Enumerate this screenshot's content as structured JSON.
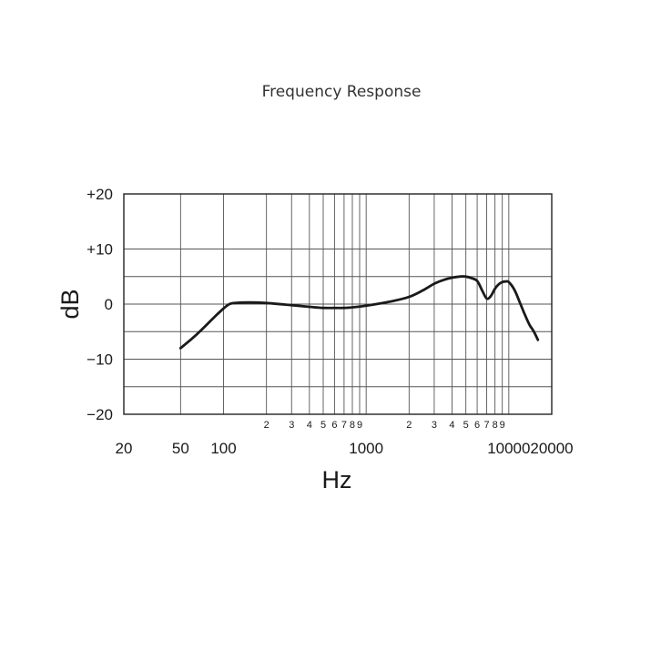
{
  "chart_data": {
    "type": "line",
    "title": "Frequency Response",
    "xlabel": "Hz",
    "ylabel": "dB",
    "x_scale": "log",
    "xlim": [
      20,
      20000
    ],
    "ylim": [
      -20,
      20
    ],
    "grid": true,
    "y_ticks": [
      {
        "value": 20,
        "label": "+20"
      },
      {
        "value": 10,
        "label": "+10"
      },
      {
        "value": 0,
        "label": "0"
      },
      {
        "value": -10,
        "label": "−10"
      },
      {
        "value": -20,
        "label": "−20"
      }
    ],
    "y_minor_grid": [
      5,
      -5,
      -15
    ],
    "x_major_ticks": [
      {
        "value": 20,
        "label": "20"
      },
      {
        "value": 50,
        "label": "50"
      },
      {
        "value": 100,
        "label": "100"
      },
      {
        "value": 1000,
        "label": "1000"
      },
      {
        "value": 10000,
        "label": "10000"
      },
      {
        "value": 20000,
        "label": "20000"
      }
    ],
    "x_minor_ticks": [
      {
        "value": 200,
        "label": "2"
      },
      {
        "value": 300,
        "label": "3"
      },
      {
        "value": 400,
        "label": "4"
      },
      {
        "value": 500,
        "label": "5"
      },
      {
        "value": 600,
        "label": "6"
      },
      {
        "value": 700,
        "label": "7"
      },
      {
        "value": 800,
        "label": "8"
      },
      {
        "value": 900,
        "label": "9"
      },
      {
        "value": 2000,
        "label": "2"
      },
      {
        "value": 3000,
        "label": "3"
      },
      {
        "value": 4000,
        "label": "4"
      },
      {
        "value": 5000,
        "label": "5"
      },
      {
        "value": 6000,
        "label": "6"
      },
      {
        "value": 7000,
        "label": "7"
      },
      {
        "value": 8000,
        "label": "8"
      },
      {
        "value": 9000,
        "label": "9"
      }
    ],
    "series": [
      {
        "color": "#1a1a1a",
        "x": [
          50,
          60,
          70,
          80,
          90,
          100,
          110,
          120,
          150,
          200,
          300,
          400,
          500,
          600,
          700,
          800,
          1000,
          1500,
          2000,
          2500,
          3000,
          3500,
          4000,
          4500,
          5000,
          5500,
          6000,
          6500,
          7000,
          7500,
          8000,
          8500,
          9000,
          9500,
          10000,
          11000,
          12000,
          13000,
          14000,
          15000,
          16000
        ],
        "y": [
          -8,
          -6.3,
          -4.7,
          -3.2,
          -1.9,
          -0.8,
          0,
          0.2,
          0.3,
          0.2,
          -0.2,
          -0.5,
          -0.7,
          -0.7,
          -0.7,
          -0.6,
          -0.3,
          0.5,
          1.3,
          2.5,
          3.7,
          4.4,
          4.8,
          5.0,
          5.0,
          4.7,
          4.2,
          2.5,
          1.0,
          1.5,
          2.8,
          3.6,
          4.0,
          4.1,
          4.0,
          2.5,
          0.2,
          -2.0,
          -3.8,
          -5.0,
          -6.5
        ]
      }
    ]
  }
}
